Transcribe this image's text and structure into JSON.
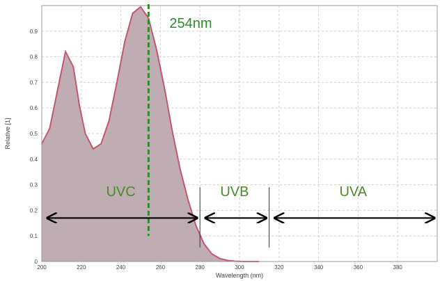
{
  "chart_data": {
    "type": "area",
    "xlabel": "Wavelength (nm)",
    "ylabel": "Relative [1]",
    "xlim": [
      200,
      400
    ],
    "ylim": [
      0,
      1.0
    ],
    "x_ticks": [
      200,
      220,
      240,
      260,
      280,
      300,
      320,
      340,
      360,
      380
    ],
    "y_ticks": [
      0.1,
      0.2,
      0.3,
      0.4,
      0.5,
      0.6,
      0.7,
      0.8,
      0.9
    ],
    "x_tick_labels": [
      "200",
      "220",
      "240",
      "260",
      "280",
      "300",
      "320",
      "340",
      "360",
      "380"
    ],
    "y_tick_labels": [
      "0.1",
      "0.2",
      "0.3",
      "0.4",
      "0.5",
      "0.6",
      "0.7",
      "0.8",
      "0.9"
    ],
    "y_zero_label": "0",
    "grid": true,
    "series": [
      {
        "x": [
          200,
          204,
          208,
          212,
          216,
          219,
          222,
          226,
          230,
          234,
          238,
          242,
          246,
          250,
          254,
          258,
          262,
          266,
          270,
          274,
          278,
          282,
          286,
          290,
          294,
          298,
          302,
          306,
          310
        ],
        "y": [
          0.46,
          0.52,
          0.67,
          0.82,
          0.76,
          0.61,
          0.5,
          0.44,
          0.46,
          0.55,
          0.7,
          0.86,
          0.97,
          0.995,
          0.95,
          0.83,
          0.68,
          0.51,
          0.36,
          0.24,
          0.14,
          0.07,
          0.03,
          0.012,
          0.004,
          0.001,
          0,
          0,
          0
        ]
      }
    ],
    "colors": {
      "fill": "#b9a4ac",
      "line": "#c4566c",
      "marker": "#2e8b2e",
      "band_text": "#4a8a2a",
      "arrow": "#000000",
      "grid": "#cfcfcf"
    },
    "marker": {
      "x": 254,
      "label": "254nm"
    },
    "bands": [
      {
        "label": "UVC",
        "from": 200,
        "to": 280
      },
      {
        "label": "UVB",
        "from": 280,
        "to": 315
      },
      {
        "label": "UVA",
        "from": 315,
        "to": 400
      }
    ],
    "band_dividers": [
      280,
      315
    ]
  }
}
